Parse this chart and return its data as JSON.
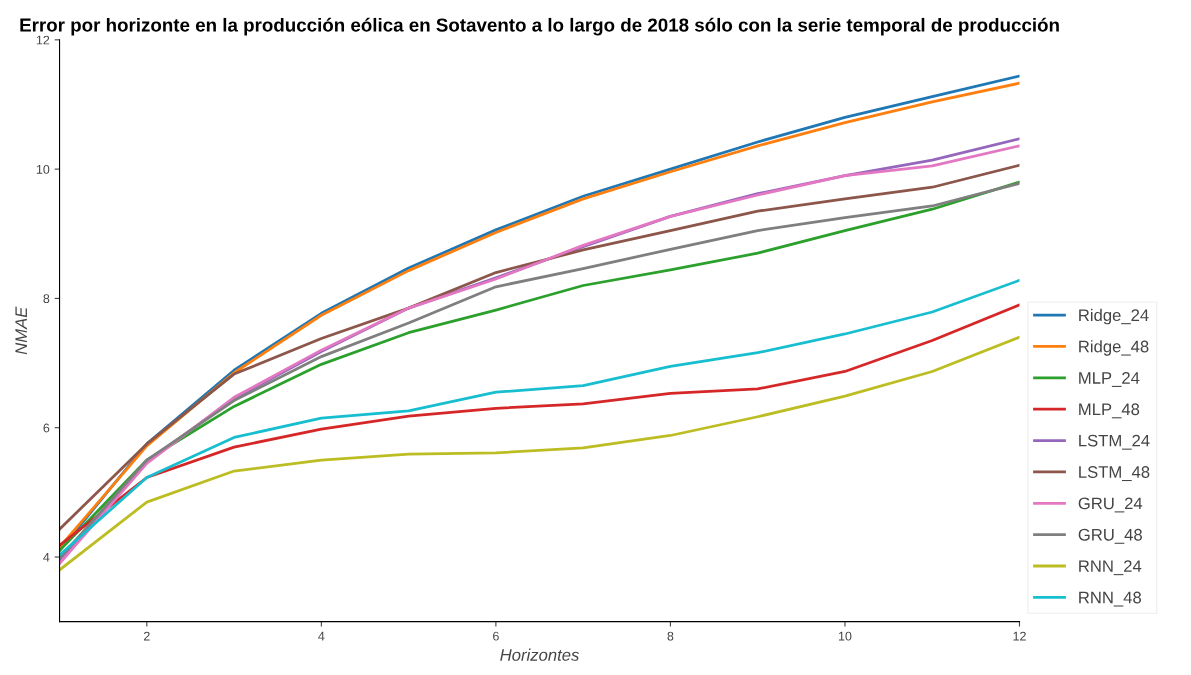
{
  "chart_data": {
    "type": "line",
    "title": "Error por horizonte en la producción eólica en Sotavento a lo largo de 2018 sólo con la serie temporal de producción",
    "xlabel": "Horizontes",
    "ylabel": "NMAE",
    "x": [
      1,
      2,
      3,
      4,
      5,
      6,
      7,
      8,
      9,
      10,
      11,
      12
    ],
    "xlim": [
      1,
      12
    ],
    "xticks": [
      2,
      4,
      6,
      8,
      10,
      12
    ],
    "ylim": [
      3,
      12
    ],
    "yticks": [
      4,
      6,
      8,
      10,
      12
    ],
    "grid": false,
    "legend": "bottom right",
    "marker": "none",
    "line_style": "solid",
    "series": [
      {
        "name": "Ridge_24",
        "color": "#1f77b4",
        "values": [
          4.1,
          5.75,
          6.89,
          7.77,
          8.47,
          9.06,
          9.58,
          10.0,
          10.42,
          10.8,
          11.12,
          11.44
        ]
      },
      {
        "name": "Ridge_48",
        "color": "#ff7f0e",
        "values": [
          4.15,
          5.72,
          6.85,
          7.74,
          8.43,
          9.02,
          9.54,
          9.96,
          10.36,
          10.72,
          11.04,
          11.33
        ]
      },
      {
        "name": "MLP_24",
        "color": "#2ca02c",
        "values": [
          4.1,
          5.5,
          6.33,
          6.98,
          7.47,
          7.82,
          8.2,
          8.44,
          8.7,
          9.05,
          9.38,
          9.8
        ]
      },
      {
        "name": "MLP_48",
        "color": "#d62728",
        "values": [
          4.18,
          5.23,
          5.7,
          5.98,
          6.18,
          6.3,
          6.37,
          6.53,
          6.6,
          6.87,
          7.35,
          7.9
        ]
      },
      {
        "name": "LSTM_24",
        "color": "#9467bd",
        "values": [
          3.95,
          5.47,
          6.45,
          7.18,
          7.85,
          8.32,
          8.8,
          9.27,
          9.62,
          9.9,
          10.14,
          10.47
        ]
      },
      {
        "name": "LSTM_48",
        "color": "#8c564b",
        "values": [
          4.43,
          5.75,
          6.83,
          7.38,
          7.85,
          8.4,
          8.75,
          9.05,
          9.35,
          9.54,
          9.72,
          10.06
        ]
      },
      {
        "name": "GRU_24",
        "color": "#e377c2",
        "values": [
          3.9,
          5.45,
          6.47,
          7.2,
          7.85,
          8.3,
          8.82,
          9.27,
          9.6,
          9.9,
          10.05,
          10.36
        ]
      },
      {
        "name": "GRU_48",
        "color": "#7f7f7f",
        "values": [
          3.98,
          5.5,
          6.42,
          7.1,
          7.62,
          8.18,
          8.46,
          8.76,
          9.05,
          9.25,
          9.43,
          9.78
        ]
      },
      {
        "name": "RNN_24",
        "color": "#bcbd22",
        "values": [
          3.8,
          4.85,
          5.33,
          5.5,
          5.59,
          5.61,
          5.69,
          5.88,
          6.17,
          6.49,
          6.87,
          7.4
        ]
      },
      {
        "name": "RNN_48",
        "color": "#17becf",
        "values": [
          4.03,
          5.23,
          5.85,
          6.15,
          6.26,
          6.55,
          6.65,
          6.95,
          7.16,
          7.45,
          7.79,
          8.28
        ]
      }
    ]
  }
}
